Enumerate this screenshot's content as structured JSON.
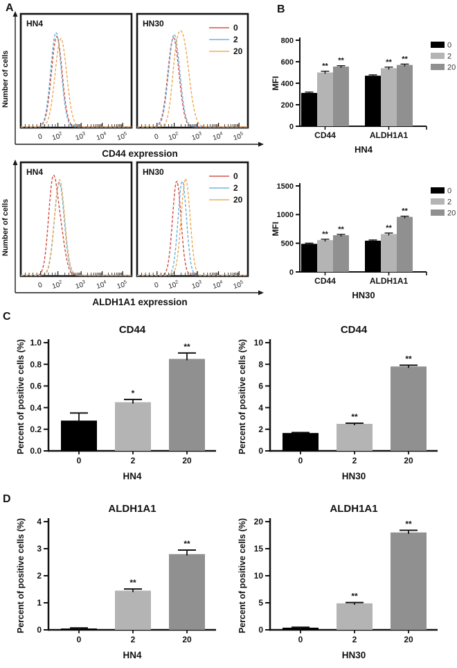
{
  "labels": {
    "panel_a": "A",
    "panel_b": "B",
    "panel_c": "C",
    "panel_d": "D"
  },
  "colors": {
    "bar_series": {
      "0": "#000000",
      "2": "#b4b4b4",
      "20": "#909090"
    },
    "curve_series": {
      "0": "#cf4a3e",
      "2": "#67b0d8",
      "20": "#eda64e"
    },
    "axis": "#1a1a1a"
  },
  "chart_data": [
    {
      "id": "flow-cd44",
      "mount": "m-flow-cd44",
      "renderer": "hist",
      "type": "line",
      "subtype": "flow-cytometry-histogram-overlay",
      "ylabel": "Number of cells",
      "xlabel": "CD44 expression",
      "xticks": [
        "0",
        "10^2",
        "10^3",
        "10^4",
        "10^5"
      ],
      "legend": [
        {
          "name": "0",
          "color": "#cf4a3e"
        },
        {
          "name": "2",
          "color": "#67b0d8"
        },
        {
          "name": "20",
          "color": "#eda64e"
        }
      ],
      "panels": [
        {
          "name": "HN4",
          "curves": [
            {
              "series": "0",
              "color": "#cf4a3e",
              "p": 0.325,
              "s": 0.048,
              "h": 0.86
            },
            {
              "series": "2",
              "color": "#67b0d8",
              "p": 0.318,
              "s": 0.047,
              "h": 0.9
            },
            {
              "series": "20",
              "color": "#eda64e",
              "p": 0.362,
              "s": 0.052,
              "h": 0.84
            }
          ]
        },
        {
          "name": "HN30",
          "curves": [
            {
              "series": "0",
              "color": "#cf4a3e",
              "p": 0.328,
              "s": 0.05,
              "h": 0.85
            },
            {
              "series": "2",
              "color": "#67b0d8",
              "p": 0.335,
              "s": 0.05,
              "h": 0.88
            },
            {
              "series": "20",
              "color": "#eda64e",
              "p": 0.41,
              "s": 0.058,
              "h": 0.84,
              "p2": 0.345,
              "s2": 0.035,
              "h2": 0.28
            }
          ]
        }
      ]
    },
    {
      "id": "flow-aldh1a1",
      "mount": "m-flow-aldh",
      "renderer": "hist",
      "type": "line",
      "subtype": "flow-cytometry-histogram-overlay",
      "ylabel": "Number of cells",
      "xlabel": "ALDH1A1 expression",
      "xticks": [
        "0",
        "10^2",
        "10^3",
        "10^4",
        "10^5"
      ],
      "legend": [
        {
          "name": "0",
          "color": "#cf4a3e"
        },
        {
          "name": "2",
          "color": "#67b0d8"
        },
        {
          "name": "20",
          "color": "#eda64e"
        }
      ],
      "panels": [
        {
          "name": "HN4",
          "curves": [
            {
              "series": "0",
              "color": "#cf4a3e",
              "p": 0.29,
              "s": 0.04,
              "h": 0.88,
              "p2": 0.362,
              "s2": 0.04,
              "h2": 0.35
            },
            {
              "series": "2",
              "color": "#67b0d8",
              "p": 0.348,
              "s": 0.044,
              "h": 0.88
            },
            {
              "series": "20",
              "color": "#eda64e",
              "p": 0.35,
              "s": 0.046,
              "h": 0.91
            }
          ]
        },
        {
          "name": "HN30",
          "curves": [
            {
              "series": "0",
              "color": "#cf4a3e",
              "p": 0.358,
              "s": 0.038,
              "h": 0.9
            },
            {
              "series": "2",
              "color": "#67b0d8",
              "p": 0.408,
              "s": 0.038,
              "h": 0.9
            },
            {
              "series": "20",
              "color": "#eda64e",
              "p": 0.438,
              "s": 0.04,
              "h": 0.92
            }
          ]
        }
      ]
    },
    {
      "id": "mfi-hn4",
      "mount": "m-mfi-hn4",
      "renderer": "groupbar",
      "type": "bar",
      "ylabel": "MFI",
      "xlabel": "HN4",
      "categories": [
        "CD44",
        "ALDH1A1"
      ],
      "ylim": [
        0,
        800
      ],
      "yticks": [
        "0",
        "200",
        "400",
        "600",
        "800"
      ],
      "series": [
        {
          "name": "0",
          "color": "#000000",
          "values": [
            310,
            470
          ],
          "errors": [
            8,
            8
          ],
          "stars": [
            "",
            ""
          ]
        },
        {
          "name": "2",
          "color": "#b4b4b4",
          "values": [
            500,
            540
          ],
          "errors": [
            12,
            10
          ],
          "stars": [
            "**",
            "**"
          ]
        },
        {
          "name": "20",
          "color": "#909090",
          "values": [
            555,
            570
          ],
          "errors": [
            8,
            8
          ],
          "stars": [
            "**",
            "**"
          ]
        }
      ]
    },
    {
      "id": "mfi-hn30",
      "mount": "m-mfi-hn30",
      "renderer": "groupbar",
      "type": "bar",
      "ylabel": "MFI",
      "xlabel": "HN30",
      "categories": [
        "CD44",
        "ALDH1A1"
      ],
      "ylim": [
        0,
        1500
      ],
      "yticks": [
        "0",
        "500",
        "1000",
        "1500"
      ],
      "series": [
        {
          "name": "0",
          "color": "#000000",
          "values": [
            490,
            545
          ],
          "errors": [
            12,
            12
          ],
          "stars": [
            "",
            ""
          ]
        },
        {
          "name": "2",
          "color": "#b4b4b4",
          "values": [
            555,
            660
          ],
          "errors": [
            15,
            18
          ],
          "stars": [
            "**",
            "**"
          ]
        },
        {
          "name": "20",
          "color": "#909090",
          "values": [
            640,
            960
          ],
          "errors": [
            15,
            12
          ],
          "stars": [
            "**",
            "**"
          ]
        }
      ]
    },
    {
      "id": "pct-cd44-hn4",
      "mount": "m-pct-cd44-hn4",
      "renderer": "bar",
      "type": "bar",
      "title": "CD44",
      "ylabel": "Percent of positive cells (%)",
      "xlabel": "HN4",
      "categories": [
        "0",
        "2",
        "20"
      ],
      "ylim": [
        0,
        1.0
      ],
      "yticks": [
        "0.0",
        "0.2",
        "0.4",
        "0.6",
        "0.8",
        "1.0"
      ],
      "values": [
        0.28,
        0.45,
        0.85
      ],
      "errors": [
        0.07,
        0.025,
        0.055
      ],
      "stars": [
        "",
        "*",
        "**"
      ],
      "bar_colors": [
        "#000000",
        "#b4b4b4",
        "#909090"
      ]
    },
    {
      "id": "pct-cd44-hn30",
      "mount": "m-pct-cd44-hn30",
      "renderer": "bar",
      "type": "bar",
      "title": "CD44",
      "ylabel": "Percent of positive cells (%)",
      "xlabel": "HN30",
      "categories": [
        "0",
        "2",
        "20"
      ],
      "ylim": [
        0,
        10
      ],
      "yticks": [
        "0",
        "2",
        "4",
        "6",
        "8",
        "10"
      ],
      "values": [
        1.65,
        2.5,
        7.8
      ],
      "errors": [
        0.05,
        0.06,
        0.12
      ],
      "stars": [
        "",
        "**",
        "**"
      ],
      "bar_colors": [
        "#000000",
        "#b4b4b4",
        "#909090"
      ]
    },
    {
      "id": "pct-aldh1a1-hn4",
      "mount": "m-pct-aldh-hn4",
      "renderer": "bar",
      "type": "bar",
      "title": "ALDH1A1",
      "ylabel": "Percent of positive cells (%)",
      "xlabel": "HN4",
      "categories": [
        "0",
        "2",
        "20"
      ],
      "ylim": [
        0,
        4
      ],
      "yticks": [
        "0",
        "1",
        "2",
        "3",
        "4"
      ],
      "values": [
        0.05,
        1.45,
        2.8
      ],
      "errors": [
        0.02,
        0.06,
        0.15
      ],
      "stars": [
        "",
        "**",
        "**"
      ],
      "bar_colors": [
        "#000000",
        "#b4b4b4",
        "#909090"
      ]
    },
    {
      "id": "pct-aldh1a1-hn30",
      "mount": "m-pct-aldh-hn30",
      "renderer": "bar",
      "type": "bar",
      "title": "ALDH1A1",
      "ylabel": "Percent of positive cells (%)",
      "xlabel": "HN30",
      "categories": [
        "0",
        "2",
        "20"
      ],
      "ylim": [
        0,
        20
      ],
      "yticks": [
        "0",
        "5",
        "10",
        "15",
        "20"
      ],
      "values": [
        0.4,
        4.9,
        18.0
      ],
      "errors": [
        0.08,
        0.15,
        0.4
      ],
      "stars": [
        "",
        "**",
        "**"
      ],
      "bar_colors": [
        "#000000",
        "#b4b4b4",
        "#909090"
      ]
    }
  ]
}
